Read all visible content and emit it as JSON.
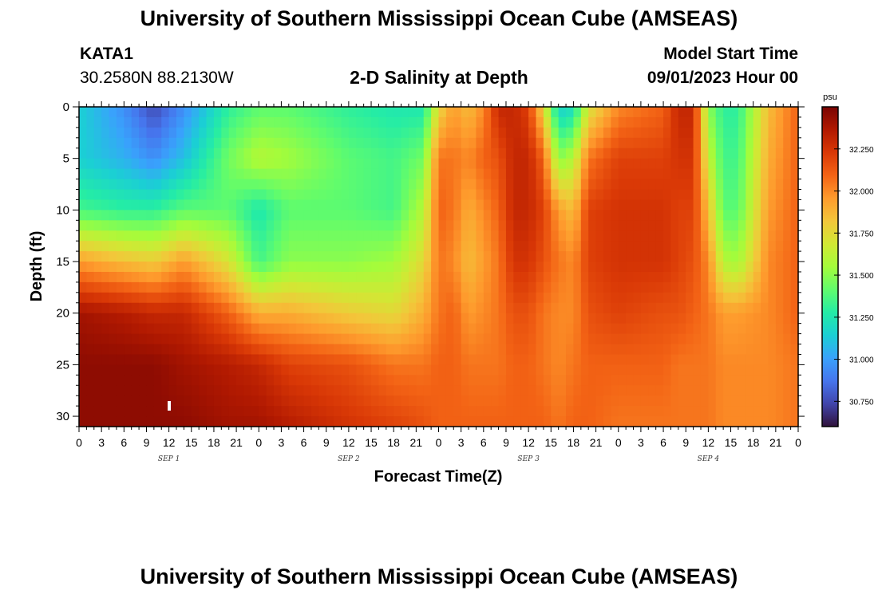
{
  "header": {
    "title": "University of Southern Mississippi Ocean Cube (AMSEAS)",
    "station": "KATA1",
    "coordinates": "30.2580N  88.2130W",
    "subtitle": "2-D Salinity at Depth",
    "model_start_label": "Model Start Time",
    "model_start_value": "09/01/2023 Hour 00"
  },
  "footer": {
    "title": "University of Southern Mississippi Ocean Cube (AMSEAS)"
  },
  "chart_data": {
    "type": "heatmap",
    "title": "2-D Salinity at Depth",
    "xlabel": "Forecast Time(Z)",
    "ylabel": "Depth (ft)",
    "x_tick_labels": [
      "0",
      "3",
      "6",
      "9",
      "12",
      "15",
      "18",
      "21",
      "0",
      "3",
      "6",
      "9",
      "12",
      "15",
      "18",
      "21",
      "0",
      "3",
      "6",
      "9",
      "12",
      "15",
      "18",
      "21",
      "0",
      "3",
      "6",
      "9",
      "12",
      "15",
      "18",
      "21",
      "0"
    ],
    "date_labels": [
      {
        "label": "SEP 1",
        "hour": 12
      },
      {
        "label": "SEP 2",
        "hour": 36
      },
      {
        "label": "SEP 3",
        "hour": 60
      },
      {
        "label": "SEP 4",
        "hour": 84
      }
    ],
    "xlim": [
      0,
      96
    ],
    "ylim": [
      0,
      31
    ],
    "y_ticks": [
      0,
      5,
      10,
      15,
      20,
      25,
      30
    ],
    "colorbar": {
      "unit": "psu",
      "range": [
        30.6,
        32.5
      ],
      "ticks": [
        "30.750",
        "31.000",
        "31.250",
        "31.500",
        "31.750",
        "32.000",
        "32.250"
      ],
      "colors": [
        "#30123b",
        "#4145ab",
        "#4675ed",
        "#39a2fc",
        "#1bcfd4",
        "#24eca6",
        "#61fc6c",
        "#a4fc3b",
        "#d1e834",
        "#f3c63a",
        "#fe9b2d",
        "#f36315",
        "#d93806",
        "#b11901",
        "#7a0402"
      ]
    },
    "time_keyframes": [
      0,
      6,
      10,
      14,
      20,
      24,
      28,
      36,
      42,
      46,
      48,
      50,
      52,
      54,
      56,
      58,
      60,
      62,
      64,
      66,
      68,
      72,
      78,
      80,
      82,
      84,
      86,
      88,
      92,
      96
    ],
    "depth_keyframes": [
      0,
      5,
      10,
      15,
      20,
      25,
      31
    ],
    "salinity_keyframes": [
      [
        31.15,
        31.15,
        31.35,
        31.95,
        32.4,
        32.45,
        32.45
      ],
      [
        30.95,
        31.05,
        31.3,
        31.85,
        32.35,
        32.45,
        32.45
      ],
      [
        30.75,
        30.95,
        31.3,
        31.8,
        32.3,
        32.45,
        32.45
      ],
      [
        30.95,
        31.1,
        31.4,
        31.95,
        32.3,
        32.4,
        32.45
      ],
      [
        31.3,
        31.45,
        31.4,
        31.7,
        32.1,
        32.35,
        32.4
      ],
      [
        31.4,
        31.6,
        31.25,
        31.35,
        31.9,
        32.3,
        32.4
      ],
      [
        31.4,
        31.55,
        31.4,
        31.5,
        31.9,
        32.2,
        32.35
      ],
      [
        31.3,
        31.4,
        31.4,
        31.5,
        31.8,
        32.15,
        32.25
      ],
      [
        31.25,
        31.35,
        31.35,
        31.55,
        31.75,
        32.05,
        32.2
      ],
      [
        31.25,
        31.45,
        31.6,
        31.75,
        31.9,
        32.05,
        32.15
      ],
      [
        31.75,
        32.05,
        32.1,
        32.05,
        32.05,
        32.1,
        32.1
      ],
      [
        31.95,
        32.05,
        32.05,
        32.0,
        32.1,
        32.1,
        32.1
      ],
      [
        31.85,
        32.0,
        31.9,
        31.85,
        31.95,
        32.05,
        32.1
      ],
      [
        32.0,
        32.1,
        32.0,
        31.95,
        32.0,
        32.05,
        32.1
      ],
      [
        32.3,
        32.15,
        32.1,
        32.05,
        32.05,
        32.05,
        32.1
      ],
      [
        32.3,
        32.3,
        32.3,
        32.25,
        32.15,
        32.1,
        32.1
      ],
      [
        32.2,
        32.3,
        32.3,
        32.25,
        32.15,
        32.1,
        32.1
      ],
      [
        31.75,
        32.1,
        32.2,
        32.15,
        32.05,
        32.05,
        32.1
      ],
      [
        31.15,
        31.5,
        31.95,
        32.05,
        32.0,
        32.0,
        32.05
      ],
      [
        31.2,
        31.6,
        31.85,
        32.0,
        32.0,
        32.05,
        32.1
      ],
      [
        31.7,
        32.05,
        32.2,
        32.2,
        32.15,
        32.1,
        32.1
      ],
      [
        32.0,
        32.2,
        32.25,
        32.25,
        32.2,
        32.1,
        32.05
      ],
      [
        32.1,
        32.2,
        32.25,
        32.25,
        32.15,
        32.1,
        32.05
      ],
      [
        32.3,
        32.25,
        32.2,
        32.2,
        32.15,
        32.05,
        32.05
      ],
      [
        32.3,
        32.25,
        32.2,
        32.15,
        32.1,
        32.05,
        32.05
      ],
      [
        31.5,
        31.65,
        31.85,
        32.0,
        32.05,
        32.05,
        32.05
      ],
      [
        31.3,
        31.35,
        31.4,
        31.6,
        31.95,
        32.0,
        32.0
      ],
      [
        31.3,
        31.35,
        31.4,
        31.55,
        31.95,
        32.0,
        32.0
      ],
      [
        31.85,
        31.9,
        31.95,
        32.0,
        32.0,
        32.0,
        32.0
      ],
      [
        32.1,
        32.1,
        32.1,
        32.1,
        32.1,
        32.05,
        32.05
      ]
    ]
  }
}
